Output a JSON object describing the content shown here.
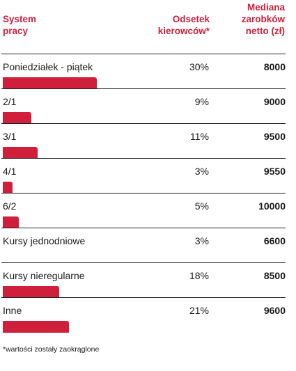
{
  "header": {
    "col1": [
      "System",
      "pracy"
    ],
    "col2": [
      "Odsetek",
      "kierowców*"
    ],
    "col3": [
      "Mediana",
      "zarobków",
      "netto (zł)"
    ]
  },
  "chart_data": {
    "type": "bar",
    "categories": [
      "Poniedziałek - piątek",
      "2/1",
      "3/1",
      "4/1",
      "6/2",
      "Kursy jednodniowe",
      "Kursy nieregularne",
      "Inne"
    ],
    "series": [
      {
        "values": [
          30,
          9,
          11,
          3,
          5,
          3,
          18,
          21
        ]
      }
    ],
    "percent_labels": [
      "30%",
      "9%",
      "11%",
      "3%",
      "5%",
      "3%",
      "18%",
      "21%"
    ],
    "median_salary": [
      8000,
      9000,
      9500,
      9550,
      10000,
      6600,
      8500,
      9600
    ],
    "median_labels": [
      "8000",
      "9000",
      "9500",
      "9550",
      "10000",
      "6600",
      "8500",
      "9600"
    ],
    "bars_shown_for": [
      true,
      true,
      true,
      true,
      true,
      false,
      true,
      true
    ],
    "color": "#cf1f3a"
  },
  "footnote": "*wartości zostały zaokrąglone"
}
